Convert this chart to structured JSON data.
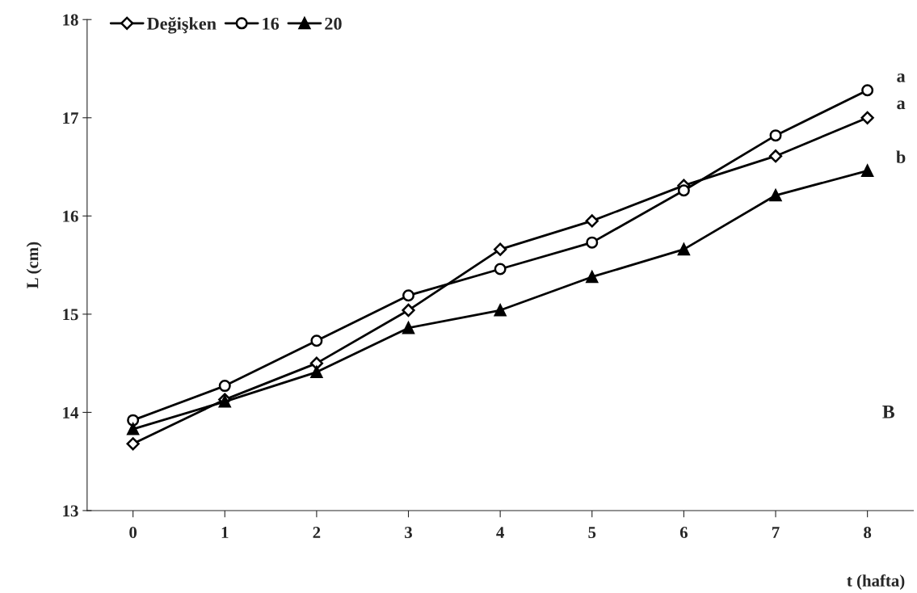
{
  "chart_data": {
    "type": "line",
    "xlabel": "t (hafta)",
    "ylabel": "L (cm)",
    "x": [
      0,
      1,
      2,
      3,
      4,
      5,
      6,
      7,
      8
    ],
    "series": [
      {
        "name": "Değişken",
        "color": "#000000",
        "marker": "diamond",
        "values": [
          13.68,
          14.13,
          14.5,
          15.04,
          15.66,
          15.95,
          16.31,
          16.61,
          17.0
        ]
      },
      {
        "name": "16",
        "color": "#000000",
        "marker": "circle",
        "values": [
          13.92,
          14.27,
          14.73,
          15.19,
          15.46,
          15.73,
          16.26,
          16.82,
          17.28
        ]
      },
      {
        "name": "20",
        "color": "#000000",
        "marker": "triangle",
        "values": [
          13.83,
          14.11,
          14.41,
          14.86,
          15.04,
          15.38,
          15.66,
          16.21,
          16.46
        ]
      }
    ],
    "xlim": [
      -0.5,
      8.5
    ],
    "xticks": [
      0,
      1,
      2,
      3,
      4,
      5,
      6,
      7,
      8
    ],
    "ylim": [
      13,
      18
    ],
    "yticks": [
      13,
      14,
      15,
      16,
      17,
      18
    ],
    "grid": false,
    "legend": "top left",
    "line_style": "solid",
    "annotations": [
      "a",
      "a",
      "b",
      "B"
    ]
  }
}
